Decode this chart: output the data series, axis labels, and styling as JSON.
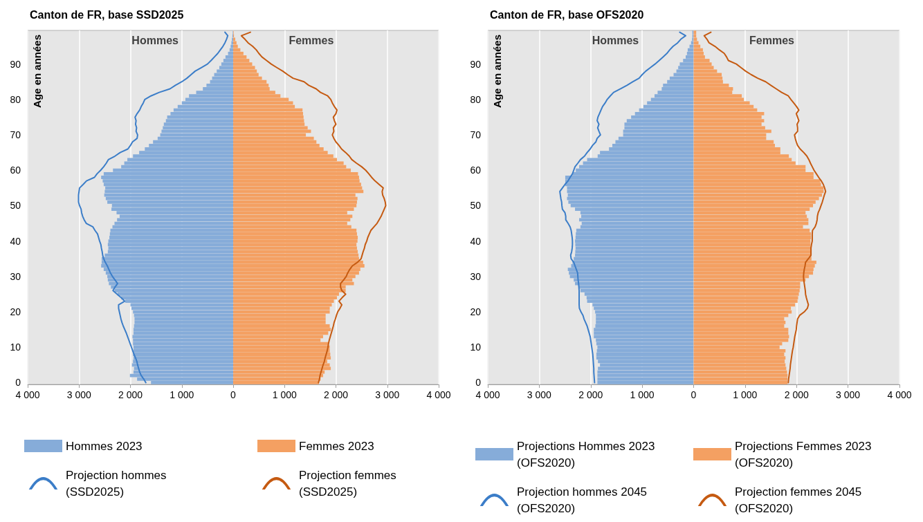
{
  "chart_data": [
    {
      "type": "bar",
      "orientation": "horizontal",
      "stacked": true,
      "title": "Canton de FR, base SSD2025",
      "ylabel": "Age en années",
      "annotations": [
        "Hommes",
        "Femmes"
      ],
      "categories": [
        null,
        null,
        null,
        null,
        null,
        null,
        null,
        null,
        null,
        "90",
        null,
        null,
        null,
        null,
        null,
        null,
        null,
        null,
        null,
        "80",
        null,
        null,
        null,
        null,
        null,
        null,
        null,
        null,
        null,
        "70",
        null,
        null,
        null,
        null,
        null,
        null,
        null,
        null,
        null,
        "60",
        null,
        null,
        null,
        null,
        null,
        null,
        null,
        null,
        null,
        "50",
        null,
        null,
        null,
        null,
        null,
        null,
        null,
        null,
        null,
        "40",
        null,
        null,
        null,
        null,
        null,
        null,
        null,
        null,
        null,
        "30",
        null,
        null,
        null,
        null,
        null,
        null,
        null,
        null,
        null,
        "20",
        null,
        null,
        null,
        null,
        null,
        null,
        null,
        null,
        null,
        "10",
        null,
        null,
        null,
        null,
        null,
        null,
        null,
        null,
        null,
        "0"
      ],
      "xlim": [
        -4000,
        4000
      ],
      "xticks": [
        {
          "value": -4000,
          "label": "4 000"
        },
        {
          "value": -3000,
          "label": "3 000"
        },
        {
          "value": -2000,
          "label": "2 000"
        },
        {
          "value": -1000,
          "label": "1 000"
        },
        0,
        {
          "value": 1000,
          "label": "1 000"
        },
        {
          "value": 2000,
          "label": "2 000"
        },
        {
          "value": 3000,
          "label": "3 000"
        },
        {
          "value": 4000,
          "label": "4 000"
        }
      ],
      "grid": "x",
      "legend": "bottom",
      "marker": "none",
      "series": [
        {
          "name": "Hommes 2023",
          "color": "#86acd9",
          "values": [
            -10,
            -15,
            -25,
            -35,
            -50,
            -70,
            -100,
            -150,
            -190,
            -230,
            -270,
            -320,
            -370,
            -410,
            -450,
            -520,
            -590,
            -720,
            -860,
            -930,
            -1000,
            -1080,
            -1160,
            -1220,
            -1285,
            -1310,
            -1350,
            -1370,
            -1395,
            -1420,
            -1470,
            -1560,
            -1640,
            -1720,
            -1830,
            -1950,
            -2060,
            -2120,
            -2180,
            -2340,
            -2520,
            -2570,
            -2540,
            -2520,
            -2490,
            -2500,
            -2510,
            -2480,
            -2450,
            -2360,
            -2370,
            -2270,
            -2210,
            -2260,
            -2310,
            -2350,
            -2390,
            -2400,
            -2410,
            -2430,
            -2440,
            -2430,
            -2440,
            -2500,
            -2560,
            -2560,
            -2570,
            -2520,
            -2480,
            -2450,
            -2440,
            -2420,
            -2380,
            -2310,
            -2250,
            -2180,
            -2100,
            -2000,
            -1980,
            -1950,
            -1930,
            -1920,
            -1920,
            -1930,
            -1940,
            -1940,
            -1960,
            -1950,
            -1950,
            -1940,
            -1940,
            -1950,
            -1940,
            -1950,
            -1970,
            -1930,
            -1940,
            -2010,
            -1870,
            -1600
          ]
        },
        {
          "name": "Femmes 2023",
          "color": "#f4a062",
          "values": [
            10,
            15,
            40,
            65,
            90,
            140,
            200,
            260,
            315,
            370,
            425,
            460,
            495,
            560,
            650,
            690,
            710,
            820,
            920,
            1080,
            1165,
            1200,
            1350,
            1360,
            1370,
            1380,
            1390,
            1450,
            1515,
            1415,
            1570,
            1620,
            1680,
            1760,
            1840,
            1950,
            2020,
            2150,
            2200,
            2290,
            2430,
            2450,
            2460,
            2490,
            2510,
            2535,
            2380,
            2420,
            2410,
            2400,
            2350,
            2220,
            2320,
            2280,
            2220,
            2300,
            2400,
            2410,
            2425,
            2420,
            2400,
            2410,
            2425,
            2440,
            2450,
            2530,
            2555,
            2475,
            2450,
            2380,
            2320,
            2350,
            2190,
            2190,
            2060,
            2020,
            1960,
            1920,
            1880,
            1880,
            1800,
            1800,
            1800,
            1880,
            1900,
            1850,
            1750,
            1700,
            1850,
            1880,
            1880,
            1890,
            1900,
            1830,
            1880,
            1900,
            1780,
            1750,
            1700,
            1670
          ]
        },
        {
          "name": "Projection hommes (SSD2025)",
          "type": "line",
          "color": "#3b7dc8",
          "values": [
            -160,
            -105,
            -130,
            -160,
            -200,
            -250,
            -300,
            -365,
            -430,
            -500,
            -620,
            -740,
            -820,
            -900,
            -1000,
            -1125,
            -1230,
            -1440,
            -1600,
            -1720,
            -1750,
            -1790,
            -1820,
            -1870,
            -1910,
            -1890,
            -1900,
            -1880,
            -1890,
            -1860,
            -1870,
            -1960,
            -2000,
            -2050,
            -2200,
            -2300,
            -2430,
            -2470,
            -2520,
            -2580,
            -2650,
            -2700,
            -2855,
            -2920,
            -2990,
            -3000,
            -3010,
            -3010,
            -3010,
            -2990,
            -2960,
            -2950,
            -2930,
            -2900,
            -2860,
            -2730,
            -2690,
            -2640,
            -2620,
            -2600,
            -2575,
            -2565,
            -2550,
            -2540,
            -2520,
            -2490,
            -2450,
            -2420,
            -2390,
            -2350,
            -2300,
            -2250,
            -2300,
            -2340,
            -2260,
            -2180,
            -2110,
            -2230,
            -2230,
            -2215,
            -2200,
            -2185,
            -2165,
            -2140,
            -2110,
            -2080,
            -2055,
            -2030,
            -2005,
            -1980,
            -1955,
            -1930,
            -1900,
            -1875,
            -1860,
            -1840,
            -1820,
            -1790,
            -1740,
            -1700
          ]
        },
        {
          "name": "Projection femmes (SSD2025)",
          "type": "line",
          "color": "#c55a11",
          "values": [
            335,
            160,
            230,
            290,
            380,
            450,
            500,
            560,
            650,
            740,
            850,
            965,
            1060,
            1165,
            1380,
            1470,
            1615,
            1700,
            1840,
            1900,
            1930,
            1970,
            2020,
            2000,
            1950,
            1970,
            2000,
            1950,
            1960,
            1930,
            1960,
            2000,
            2060,
            2110,
            2190,
            2260,
            2310,
            2400,
            2500,
            2580,
            2640,
            2695,
            2760,
            2840,
            2920,
            2900,
            2910,
            2940,
            2960,
            2970,
            2940,
            2910,
            2880,
            2840,
            2800,
            2740,
            2680,
            2650,
            2620,
            2600,
            2570,
            2555,
            2530,
            2510,
            2490,
            2420,
            2320,
            2270,
            2230,
            2200,
            2150,
            2090,
            2090,
            2115,
            2190,
            2120,
            2060,
            2115,
            2080,
            2035,
            2010,
            1990,
            1965,
            1950,
            1930,
            1910,
            1890,
            1870,
            1855,
            1845,
            1830,
            1810,
            1790,
            1775,
            1750,
            1730,
            1710,
            1690,
            1680,
            1660
          ]
        }
      ]
    },
    {
      "type": "bar",
      "orientation": "horizontal",
      "stacked": true,
      "title": "Canton de FR, base OFS2020",
      "ylabel": "Age en années",
      "annotations": [
        "Hommes",
        "Femmes"
      ],
      "categories": [
        null,
        null,
        null,
        null,
        null,
        null,
        null,
        null,
        null,
        "90",
        null,
        null,
        null,
        null,
        null,
        null,
        null,
        null,
        null,
        "80",
        null,
        null,
        null,
        null,
        null,
        null,
        null,
        null,
        null,
        "70",
        null,
        null,
        null,
        null,
        null,
        null,
        null,
        null,
        null,
        "60",
        null,
        null,
        null,
        null,
        null,
        null,
        null,
        null,
        null,
        "50",
        null,
        null,
        null,
        null,
        null,
        null,
        null,
        null,
        null,
        "40",
        null,
        null,
        null,
        null,
        null,
        null,
        null,
        null,
        null,
        "30",
        null,
        null,
        null,
        null,
        null,
        null,
        null,
        null,
        null,
        "20",
        null,
        null,
        null,
        null,
        null,
        null,
        null,
        null,
        null,
        "10",
        null,
        null,
        null,
        null,
        null,
        null,
        null,
        null,
        null,
        "0"
      ],
      "xlim": [
        -4000,
        4000
      ],
      "xticks": [
        {
          "value": -4000,
          "label": "4 000"
        },
        {
          "value": -3000,
          "label": "3 000"
        },
        {
          "value": -2000,
          "label": "2 000"
        },
        {
          "value": -1000,
          "label": "1 000"
        },
        0,
        {
          "value": 1000,
          "label": "1 000"
        },
        {
          "value": 2000,
          "label": "2 000"
        },
        {
          "value": 3000,
          "label": "3 000"
        },
        {
          "value": 4000,
          "label": "4 000"
        }
      ],
      "grid": "x",
      "legend": "bottom",
      "marker": "none",
      "series": [
        {
          "name": "Projections Hommes 2023 (OFS2020)",
          "color": "#86acd9",
          "values": [
            -25,
            -25,
            -30,
            -50,
            -80,
            -115,
            -130,
            -155,
            -205,
            -270,
            -300,
            -335,
            -390,
            -465,
            -515,
            -595,
            -620,
            -700,
            -760,
            -830,
            -905,
            -975,
            -1060,
            -1140,
            -1215,
            -1300,
            -1345,
            -1345,
            -1370,
            -1370,
            -1460,
            -1520,
            -1580,
            -1645,
            -1820,
            -1865,
            -2070,
            -2150,
            -2225,
            -2290,
            -2355,
            -2495,
            -2495,
            -2495,
            -2460,
            -2460,
            -2445,
            -2460,
            -2435,
            -2390,
            -2305,
            -2200,
            -2185,
            -2225,
            -2175,
            -2200,
            -2280,
            -2290,
            -2295,
            -2305,
            -2300,
            -2295,
            -2300,
            -2305,
            -2330,
            -2355,
            -2380,
            -2445,
            -2425,
            -2405,
            -2330,
            -2305,
            -2235,
            -2200,
            -2120,
            -2080,
            -2070,
            -1965,
            -1940,
            -1915,
            -1900,
            -1900,
            -1900,
            -1910,
            -1940,
            -1940,
            -1940,
            -1900,
            -1890,
            -1870,
            -1880,
            -1890,
            -1890,
            -1860,
            -1820,
            -1860,
            -1870,
            -1870,
            -1870,
            -1870
          ]
        },
        {
          "name": "Projections Femmes 2023 (OFS2020)",
          "color": "#f4a062",
          "values": [
            50,
            50,
            65,
            95,
            130,
            180,
            195,
            220,
            310,
            350,
            390,
            455,
            545,
            560,
            570,
            685,
            765,
            750,
            935,
            975,
            1090,
            1165,
            1235,
            1370,
            1320,
            1370,
            1320,
            1390,
            1510,
            1410,
            1410,
            1555,
            1580,
            1685,
            1685,
            1850,
            1905,
            1980,
            2175,
            2175,
            2330,
            2330,
            2460,
            2475,
            2525,
            2525,
            2495,
            2435,
            2370,
            2320,
            2255,
            2175,
            2200,
            2230,
            2230,
            2125,
            2255,
            2280,
            2280,
            2270,
            2270,
            2280,
            2290,
            2290,
            2290,
            2385,
            2355,
            2330,
            2320,
            2240,
            2175,
            2070,
            2070,
            2060,
            2045,
            2030,
            2020,
            1970,
            1890,
            1905,
            1840,
            1760,
            1785,
            1760,
            1840,
            1840,
            1855,
            1840,
            1720,
            1670,
            1785,
            1760,
            1785,
            1770,
            1785,
            1800,
            1815,
            1825,
            1825,
            1825
          ]
        },
        {
          "name": "Projection hommes 2045 (OFS2020)",
          "type": "line",
          "color": "#3b7dc8",
          "values": [
            -270,
            -155,
            -250,
            -310,
            -400,
            -465,
            -520,
            -595,
            -670,
            -750,
            -840,
            -930,
            -1000,
            -1060,
            -1180,
            -1295,
            -1420,
            -1555,
            -1620,
            -1680,
            -1720,
            -1770,
            -1800,
            -1830,
            -1860,
            -1875,
            -1840,
            -1865,
            -1840,
            -1810,
            -1875,
            -1900,
            -1965,
            -2010,
            -2070,
            -2120,
            -2200,
            -2250,
            -2305,
            -2330,
            -2355,
            -2400,
            -2440,
            -2500,
            -2550,
            -2600,
            -2590,
            -2580,
            -2565,
            -2560,
            -2550,
            -2500,
            -2485,
            -2485,
            -2440,
            -2400,
            -2380,
            -2370,
            -2360,
            -2355,
            -2355,
            -2360,
            -2370,
            -2390,
            -2380,
            -2330,
            -2305,
            -2280,
            -2255,
            -2250,
            -2245,
            -2235,
            -2230,
            -2225,
            -2225,
            -2225,
            -2225,
            -2225,
            -2220,
            -2190,
            -2150,
            -2130,
            -2100,
            -2070,
            -2050,
            -2030,
            -2010,
            -2000,
            -1990,
            -1980,
            -1970,
            -1960,
            -1955,
            -1950,
            -1945,
            -1940,
            -1940,
            -1935,
            -1930,
            -1925
          ]
        },
        {
          "name": "Projection femmes 2045 (OFS2020)",
          "type": "line",
          "color": "#c55a11",
          "values": [
            335,
            205,
            260,
            300,
            415,
            500,
            595,
            640,
            675,
            830,
            920,
            1010,
            1120,
            1245,
            1400,
            1500,
            1605,
            1710,
            1840,
            1890,
            1945,
            2000,
            2045,
            1995,
            2020,
            2045,
            2010,
            2020,
            2020,
            1960,
            1975,
            1995,
            2020,
            2070,
            2140,
            2200,
            2240,
            2270,
            2305,
            2340,
            2385,
            2430,
            2480,
            2520,
            2545,
            2565,
            2540,
            2520,
            2500,
            2475,
            2450,
            2420,
            2405,
            2400,
            2385,
            2360,
            2310,
            2305,
            2305,
            2305,
            2290,
            2280,
            2280,
            2280,
            2230,
            2175,
            2165,
            2150,
            2140,
            2135,
            2140,
            2150,
            2160,
            2170,
            2175,
            2190,
            2210,
            2230,
            2210,
            2150,
            2060,
            2020,
            2010,
            2000,
            1995,
            1980,
            1965,
            1955,
            1945,
            1935,
            1920,
            1910,
            1900,
            1890,
            1880,
            1875,
            1865,
            1855,
            1845,
            1840
          ]
        }
      ]
    }
  ]
}
